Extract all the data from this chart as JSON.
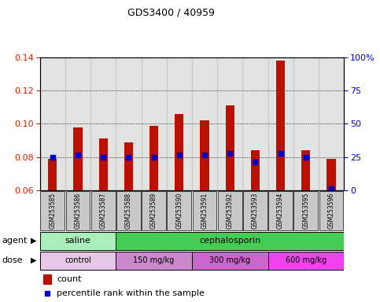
{
  "title": "GDS3400 / 40959",
  "samples": [
    "GSM253585",
    "GSM253586",
    "GSM253587",
    "GSM253588",
    "GSM253589",
    "GSM253590",
    "GSM253591",
    "GSM253592",
    "GSM253593",
    "GSM253594",
    "GSM253595",
    "GSM253596"
  ],
  "count_values": [
    0.079,
    0.098,
    0.091,
    0.089,
    0.099,
    0.106,
    0.102,
    0.111,
    0.084,
    0.138,
    0.084,
    0.079
  ],
  "percentile_values": [
    0.08,
    0.0812,
    0.08,
    0.08,
    0.08,
    0.0812,
    0.0812,
    0.0822,
    0.0772,
    0.0822,
    0.08,
    0.061
  ],
  "ylim_left": [
    0.06,
    0.14
  ],
  "ylim_right": [
    0,
    100
  ],
  "yticks_left": [
    0.06,
    0.08,
    0.1,
    0.12,
    0.14
  ],
  "yticks_right": [
    0,
    25,
    50,
    75,
    100
  ],
  "bar_color": "#bb1100",
  "dot_color": "#0000cc",
  "bg_color": "#c8c8c8",
  "agent_groups": [
    {
      "label": "saline",
      "start": 0,
      "end": 3,
      "color": "#aaeebb"
    },
    {
      "label": "cephalosporin",
      "start": 3,
      "end": 12,
      "color": "#44cc55"
    }
  ],
  "dose_groups": [
    {
      "label": "control",
      "start": 0,
      "end": 3,
      "color": "#e8c8e8"
    },
    {
      "label": "150 mg/kg",
      "start": 3,
      "end": 6,
      "color": "#cc88cc"
    },
    {
      "label": "300 mg/kg",
      "start": 6,
      "end": 9,
      "color": "#cc66cc"
    },
    {
      "label": "600 mg/kg",
      "start": 9,
      "end": 12,
      "color": "#ee44ee"
    }
  ],
  "legend_count_color": "#bb1100",
  "legend_dot_color": "#0000cc",
  "bar_bottom": 0.06,
  "dot_marker_size": 4
}
